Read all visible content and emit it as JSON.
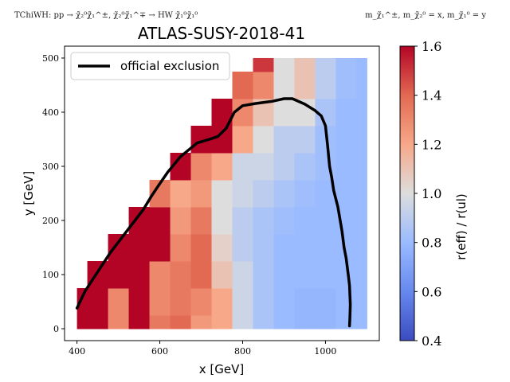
{
  "header": {
    "left_text": "TChiWH: pp → χ̃₂⁰χ̃₁^±, χ̃₂⁰χ̃₁^∓ → HW χ̃₁⁰χ̃₁⁰",
    "right_text": "m_χ̃₁^±, m_χ̃₂⁰ = x, m_χ̃₁⁰ = y"
  },
  "colors": {
    "low": "#3b4cc0",
    "mid": "#dddddd",
    "high": "#b40426",
    "exclusion_line": "#000000"
  },
  "chart_data": {
    "type": "heatmap",
    "title": "ATLAS-SUSY-2018-41",
    "xlabel": "x [GeV]",
    "ylabel": "y [GeV]",
    "xlim": [
      370,
      1130
    ],
    "ylim": [
      -22,
      522
    ],
    "xticks": [
      "400",
      "600",
      "800",
      "1000"
    ],
    "yticks": [
      "0",
      "100",
      "200",
      "300",
      "400",
      "500"
    ],
    "legend": {
      "placement": "top-left",
      "entries": [
        "official exclusion"
      ]
    },
    "colorbar": {
      "label": "r(eff) / r(ul)",
      "range": [
        0.4,
        1.6
      ],
      "ticks": [
        "0.4",
        "0.6",
        "0.8",
        "1.0",
        "1.2",
        "1.4",
        "1.6"
      ],
      "colormap": "coolwarm"
    },
    "heatmap": {
      "x": [
        400,
        450,
        500,
        550,
        600,
        650,
        700,
        750,
        800,
        850,
        900,
        950,
        1000,
        1050,
        1100
      ],
      "y": [
        0,
        50,
        100,
        150,
        200,
        250,
        300,
        350,
        400,
        450,
        500
      ],
      "r": [
        [
          1.6,
          1.6,
          1.3,
          1.6,
          1.35,
          1.4,
          1.25,
          1.2,
          0.95,
          0.85,
          0.8,
          0.78,
          0.78,
          0.8,
          0.8
        ],
        [
          1.6,
          1.6,
          1.3,
          1.6,
          1.3,
          1.35,
          1.3,
          1.2,
          0.95,
          0.85,
          0.8,
          0.78,
          0.78,
          0.8,
          0.8
        ],
        [
          null,
          1.6,
          1.6,
          1.6,
          1.3,
          1.35,
          1.4,
          1.1,
          0.95,
          0.85,
          0.8,
          0.8,
          0.8,
          0.8,
          0.8
        ],
        [
          null,
          null,
          1.6,
          1.6,
          1.6,
          1.3,
          1.4,
          1.05,
          0.9,
          0.85,
          0.8,
          0.8,
          0.8,
          0.8,
          0.8
        ],
        [
          null,
          null,
          null,
          1.6,
          1.6,
          1.25,
          1.35,
          1.0,
          0.9,
          0.85,
          0.82,
          0.8,
          0.8,
          0.8,
          0.8
        ],
        [
          null,
          null,
          null,
          null,
          1.35,
          1.2,
          1.25,
          1.0,
          0.95,
          0.9,
          0.85,
          0.82,
          0.8,
          0.8,
          0.8
        ],
        [
          null,
          null,
          null,
          null,
          null,
          1.6,
          1.3,
          1.2,
          0.95,
          0.95,
          0.9,
          0.85,
          0.82,
          0.8,
          0.8
        ],
        [
          null,
          null,
          null,
          null,
          null,
          null,
          1.6,
          1.6,
          1.2,
          1.0,
          0.9,
          0.9,
          0.82,
          0.8,
          0.8
        ],
        [
          null,
          null,
          null,
          null,
          null,
          null,
          null,
          1.6,
          1.3,
          1.1,
          1.0,
          1.0,
          0.85,
          0.8,
          0.8
        ],
        [
          null,
          null,
          null,
          null,
          null,
          null,
          null,
          null,
          1.4,
          1.3,
          1.0,
          1.1,
          0.9,
          0.82,
          0.8
        ],
        [
          null,
          null,
          null,
          null,
          null,
          null,
          null,
          null,
          null,
          1.5,
          1.0,
          1.1,
          0.9,
          0.82,
          0.8
        ]
      ]
    },
    "exclusion_line": {
      "name": "official exclusion",
      "x": [
        400,
        420,
        450,
        480,
        520,
        560,
        580,
        600,
        620,
        650,
        690,
        720,
        740,
        760,
        780,
        800,
        830,
        870,
        900,
        920,
        950,
        975,
        990,
        1000,
        1005,
        1010,
        1015,
        1020,
        1030,
        1040,
        1045,
        1050,
        1055,
        1058,
        1060,
        1059,
        1058
      ],
      "y": [
        38,
        70,
        105,
        140,
        180,
        220,
        245,
        268,
        290,
        318,
        343,
        350,
        355,
        370,
        400,
        412,
        416,
        420,
        425,
        425,
        415,
        403,
        393,
        375,
        340,
        300,
        280,
        255,
        225,
        180,
        150,
        130,
        100,
        80,
        45,
        20,
        5
      ]
    }
  }
}
